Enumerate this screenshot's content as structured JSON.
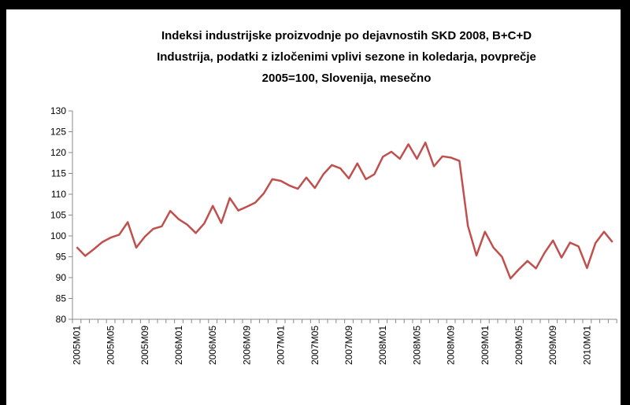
{
  "chart_data": {
    "type": "line",
    "title_lines": [
      "Indeksi industrijske proizvodnje po dejavnostih SKD 2008, B+C+D",
      "Industrija, podatki z izločenimi vplivi sezone in koledarja, povprečje",
      "2005=100, Slovenija, mesečno"
    ],
    "categories": [
      "2005M01",
      null,
      null,
      null,
      "2005M05",
      null,
      null,
      null,
      "2005M09",
      null,
      null,
      null,
      "2006M01",
      null,
      null,
      null,
      "2006M05",
      null,
      null,
      null,
      "2006M09",
      null,
      null,
      null,
      "2007M01",
      null,
      null,
      null,
      "2007M05",
      null,
      null,
      null,
      "2007M09",
      null,
      null,
      null,
      "2008M01",
      null,
      null,
      null,
      "2008M05",
      null,
      null,
      null,
      "2008M09",
      null,
      null,
      null,
      "2009M01",
      null,
      null,
      null,
      "2009M05",
      null,
      null,
      null,
      "2009M09",
      null,
      null,
      null,
      "2010M01",
      null,
      null,
      null
    ],
    "series": [
      {
        "color": "#c0504d",
        "values": [
          97.3,
          95.2,
          96.8,
          98.5,
          99.6,
          100.3,
          103.3,
          97.2,
          99.8,
          101.7,
          102.3,
          106.0,
          104.0,
          102.7,
          100.7,
          103.0,
          107.2,
          103.1,
          109.1,
          106.1,
          107.0,
          108.0,
          110.2,
          113.6,
          113.2,
          112.1,
          111.3,
          114.0,
          111.5,
          114.8,
          117.0,
          116.2,
          113.8,
          117.4,
          113.6,
          114.8,
          119.0,
          120.2,
          118.5,
          122.0,
          118.5,
          122.4,
          116.7,
          119.1,
          118.8,
          118.0,
          102.4,
          95.3,
          101.0,
          97.2,
          95.0,
          89.8,
          92.0,
          94.0,
          92.2,
          95.9,
          98.9,
          94.8,
          98.4,
          97.5,
          92.3,
          98.3,
          101.0,
          98.5
        ]
      }
    ],
    "ylim": [
      80,
      130
    ],
    "yticks": [
      80,
      85,
      90,
      95,
      100,
      105,
      110,
      115,
      120,
      125,
      130
    ],
    "grid": false
  }
}
